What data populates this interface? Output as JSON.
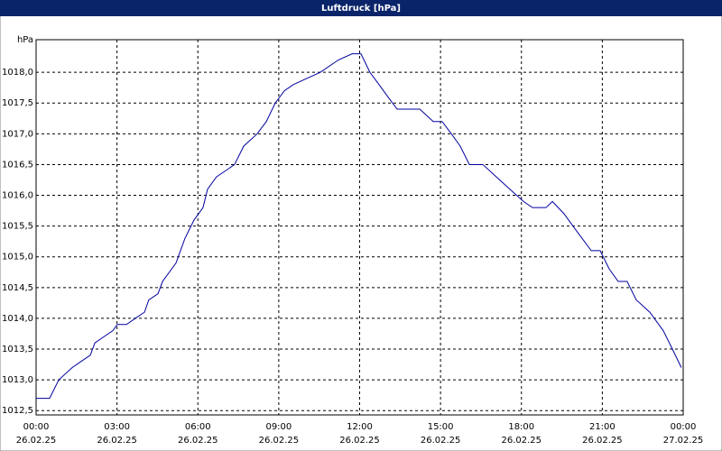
{
  "chart_data": {
    "type": "line",
    "title": "Luftdruck [hPa]",
    "y_unit": "hPa",
    "x": [
      0,
      0.5,
      0.84,
      1.34,
      1.67,
      2.01,
      2.18,
      2.51,
      2.85,
      3.01,
      3.35,
      3.68,
      4.02,
      4.18,
      4.52,
      4.69,
      5.19,
      5.52,
      5.86,
      6.19,
      6.36,
      6.69,
      7.03,
      7.36,
      7.7,
      8.2,
      8.54,
      8.87,
      9.21,
      9.54,
      10.04,
      10.54,
      11.21,
      11.72,
      12.05,
      12.38,
      12.72,
      13.05,
      13.39,
      14.23,
      14.73,
      15.06,
      15.4,
      15.73,
      16.07,
      16.57,
      17.07,
      17.57,
      18.08,
      18.41,
      18.91,
      19.15,
      19.58,
      20.08,
      20.59,
      20.92,
      21.26,
      21.59,
      21.92,
      22.26,
      22.76,
      23.26,
      23.6,
      23.93
    ],
    "series": [
      {
        "name": "Luftdruck",
        "color": "#0000a0",
        "values": [
          1012.7,
          1012.7,
          1013.0,
          1013.2,
          1013.3,
          1013.4,
          1013.6,
          1013.7,
          1013.8,
          1013.9,
          1013.9,
          1014.0,
          1014.1,
          1014.3,
          1014.4,
          1014.6,
          1014.9,
          1015.3,
          1015.6,
          1015.8,
          1016.1,
          1016.3,
          1016.4,
          1016.5,
          1016.8,
          1017.0,
          1017.2,
          1017.5,
          1017.7,
          1017.8,
          1017.9,
          1018.0,
          1018.2,
          1018.3,
          1018.3,
          1018.0,
          1017.8,
          1017.6,
          1017.4,
          1017.4,
          1017.2,
          1017.2,
          1017.0,
          1016.8,
          1016.5,
          1016.5,
          1016.3,
          1016.1,
          1015.9,
          1015.8,
          1015.8,
          1015.9,
          1015.7,
          1015.4,
          1015.1,
          1015.1,
          1014.8,
          1014.6,
          1014.6,
          1014.3,
          1014.1,
          1013.8,
          1013.5,
          1013.2
        ]
      }
    ],
    "xlim": [
      0,
      24
    ],
    "xticks": [
      {
        "value": 0,
        "label": "00:00"
      },
      {
        "value": 3,
        "label": "03:00"
      },
      {
        "value": 6,
        "label": "06:00"
      },
      {
        "value": 9,
        "label": "09:00"
      },
      {
        "value": 12,
        "label": "12:00"
      },
      {
        "value": 15,
        "label": "15:00"
      },
      {
        "value": 18,
        "label": "18:00"
      },
      {
        "value": 21,
        "label": "21:00"
      },
      {
        "value": 24,
        "label": "00:00"
      }
    ],
    "xtick_dates": [
      "26.02.25",
      "26.02.25",
      "26.02.25",
      "26.02.25",
      "26.02.25",
      "26.02.25",
      "26.02.25",
      "26.02.25",
      "27.02.25"
    ],
    "ylim": [
      1012.43,
      1018.53
    ],
    "yticks": [
      {
        "value": 1012.5,
        "label": "1012,5"
      },
      {
        "value": 1013,
        "label": "1013,0"
      },
      {
        "value": 1013.5,
        "label": "1013,5"
      },
      {
        "value": 1014,
        "label": "1014,0"
      },
      {
        "value": 1014.5,
        "label": "1014,5"
      },
      {
        "value": 1015,
        "label": "1015,0"
      },
      {
        "value": 1015.5,
        "label": "1015,5"
      },
      {
        "value": 1016,
        "label": "1016,0"
      },
      {
        "value": 1016.5,
        "label": "1016,5"
      },
      {
        "value": 1017,
        "label": "1017,0"
      },
      {
        "value": 1017.5,
        "label": "1017,5"
      },
      {
        "value": 1018,
        "label": "1018,0"
      }
    ],
    "grid": true
  }
}
